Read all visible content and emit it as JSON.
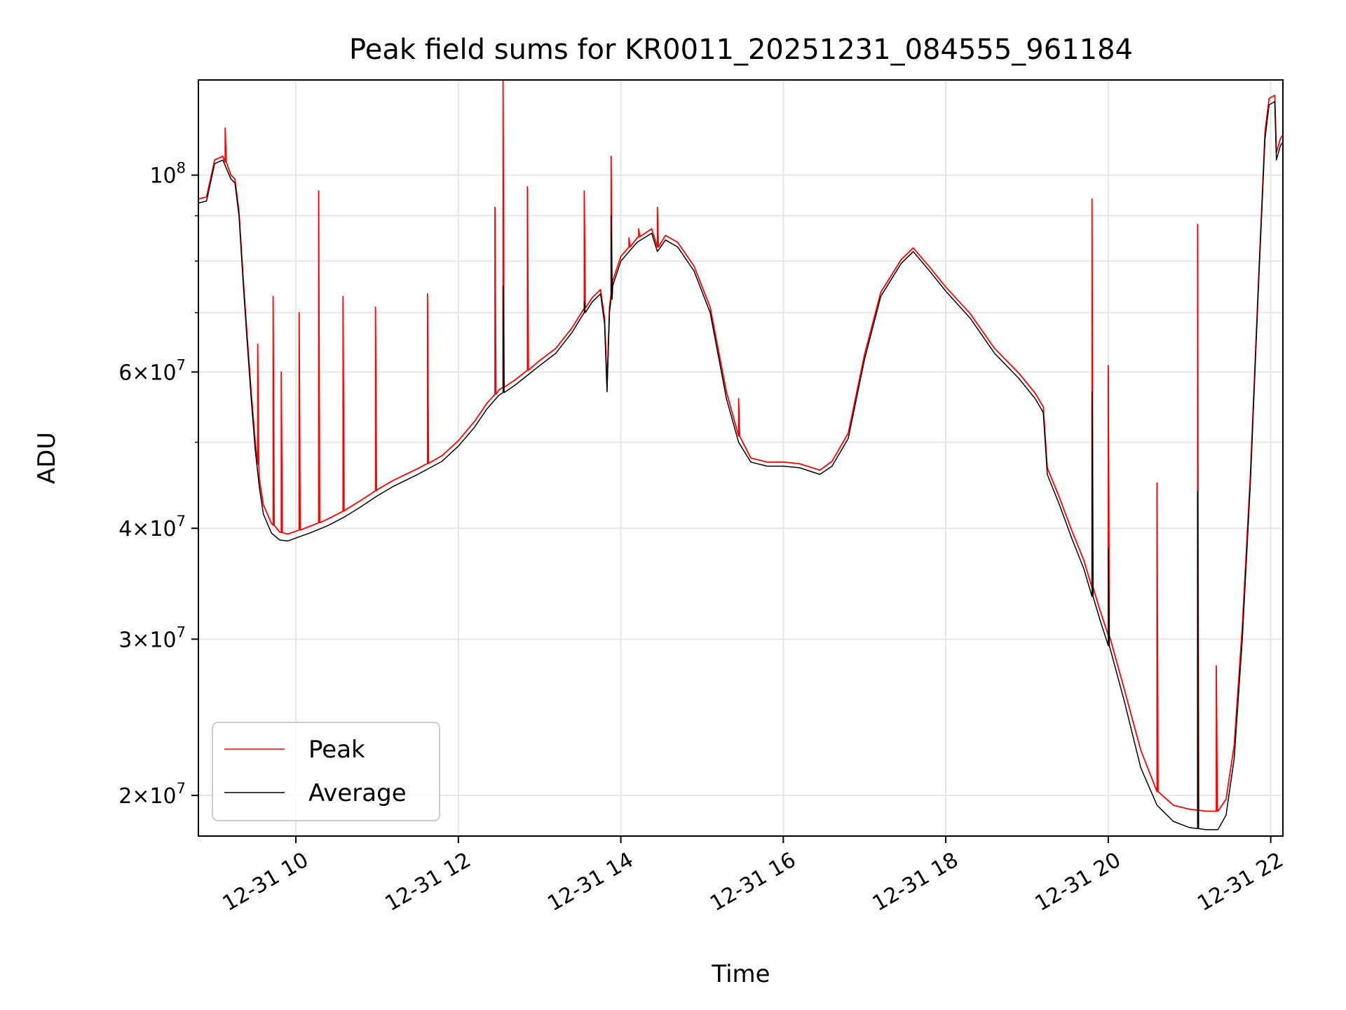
{
  "chart_data": {
    "type": "line",
    "title": "Peak field sums for KR0011_20251231_084555_961184",
    "xlabel": "Time",
    "ylabel": "ADU",
    "yscale": "log",
    "xlim": [
      8.8,
      22.15
    ],
    "ylim": [
      18000000,
      128000000
    ],
    "grid": true,
    "x_ticks": [
      {
        "value": 10,
        "label": "12-31 10"
      },
      {
        "value": 12,
        "label": "12-31 12"
      },
      {
        "value": 14,
        "label": "12-31 14"
      },
      {
        "value": 16,
        "label": "12-31 16"
      },
      {
        "value": 18,
        "label": "12-31 18"
      },
      {
        "value": 20,
        "label": "12-31 20"
      },
      {
        "value": 22,
        "label": "12-31 22"
      }
    ],
    "y_ticks": [
      {
        "value": 100000000,
        "mantissa": "",
        "base": "10",
        "exp": "8"
      },
      {
        "value": 60000000,
        "mantissa": "6",
        "base": "10",
        "exp": "7"
      },
      {
        "value": 40000000,
        "mantissa": "4",
        "base": "10",
        "exp": "7"
      },
      {
        "value": 30000000,
        "mantissa": "3",
        "base": "10",
        "exp": "7"
      },
      {
        "value": 20000000,
        "mantissa": "2",
        "base": "10",
        "exp": "7"
      }
    ],
    "y_minor_ticks": [
      50000000,
      70000000,
      80000000,
      90000000
    ],
    "legend": {
      "position": "lower-left",
      "entries": [
        "Peak",
        "Average"
      ]
    },
    "series": [
      {
        "name": "Average",
        "color": "#000000",
        "points": [
          [
            8.8,
            93
          ],
          [
            8.9,
            93.5
          ],
          [
            9.0,
            103
          ],
          [
            9.1,
            104
          ],
          [
            9.2,
            99
          ],
          [
            9.25,
            98
          ],
          [
            9.3,
            90
          ],
          [
            9.35,
            76
          ],
          [
            9.4,
            65
          ],
          [
            9.45,
            56
          ],
          [
            9.5,
            49
          ],
          [
            9.55,
            44.5
          ],
          [
            9.6,
            41.5
          ],
          [
            9.7,
            39.5
          ],
          [
            9.8,
            38.8
          ],
          [
            9.9,
            38.7
          ],
          [
            10.0,
            39.0
          ],
          [
            10.2,
            39.6
          ],
          [
            10.4,
            40.3
          ],
          [
            10.6,
            41.2
          ],
          [
            10.8,
            42.3
          ],
          [
            11.0,
            43.5
          ],
          [
            11.2,
            44.6
          ],
          [
            11.5,
            46.0
          ],
          [
            11.8,
            47.6
          ],
          [
            12.0,
            49.5
          ],
          [
            12.2,
            52.0
          ],
          [
            12.35,
            54.5
          ],
          [
            12.5,
            56.5
          ],
          [
            12.7,
            58.0
          ],
          [
            13.0,
            61.0
          ],
          [
            13.2,
            63.0
          ],
          [
            13.4,
            66.5
          ],
          [
            13.55,
            70.0
          ],
          [
            13.65,
            72.0
          ],
          [
            13.75,
            73.5
          ],
          [
            13.8,
            68.0
          ],
          [
            13.83,
            57.0
          ],
          [
            13.86,
            70.0
          ],
          [
            13.9,
            75.0
          ],
          [
            14.0,
            80.0
          ],
          [
            14.2,
            84.0
          ],
          [
            14.38,
            86.0
          ],
          [
            14.45,
            82.0
          ],
          [
            14.55,
            84.5
          ],
          [
            14.7,
            83.0
          ],
          [
            14.9,
            78.0
          ],
          [
            15.1,
            70.0
          ],
          [
            15.3,
            56.0
          ],
          [
            15.45,
            50.0
          ],
          [
            15.6,
            47.5
          ],
          [
            15.8,
            47.0
          ],
          [
            16.0,
            47.0
          ],
          [
            16.2,
            46.8
          ],
          [
            16.45,
            46.0
          ],
          [
            16.6,
            47.0
          ],
          [
            16.8,
            50.5
          ],
          [
            17.0,
            62.0
          ],
          [
            17.2,
            73.0
          ],
          [
            17.45,
            79.5
          ],
          [
            17.6,
            82.0
          ],
          [
            17.8,
            78.0
          ],
          [
            18.0,
            74.0
          ],
          [
            18.3,
            69.0
          ],
          [
            18.6,
            63.0
          ],
          [
            18.9,
            59.0
          ],
          [
            19.1,
            56.0
          ],
          [
            19.2,
            54.0
          ],
          [
            19.25,
            46.0
          ],
          [
            19.4,
            42.5
          ],
          [
            19.55,
            39.0
          ],
          [
            19.7,
            36.0
          ],
          [
            19.8,
            33.5
          ],
          [
            19.9,
            31.5
          ],
          [
            20.0,
            29.5
          ],
          [
            20.2,
            25.5
          ],
          [
            20.4,
            21.5
          ],
          [
            20.6,
            19.5
          ],
          [
            20.8,
            18.7
          ],
          [
            21.0,
            18.4
          ],
          [
            21.2,
            18.3
          ],
          [
            21.35,
            18.3
          ],
          [
            21.45,
            19.0
          ],
          [
            21.55,
            22.0
          ],
          [
            21.65,
            30.0
          ],
          [
            21.75,
            45.0
          ],
          [
            21.85,
            75.0
          ],
          [
            21.93,
            110.0
          ],
          [
            21.98,
            120.0
          ],
          [
            22.05,
            121.0
          ],
          [
            22.07,
            104.0
          ],
          [
            22.12,
            108.0
          ],
          [
            22.15,
            109.0
          ]
        ],
        "spikes": [
          [
            12.55,
            75
          ],
          [
            13.55,
            72
          ],
          [
            13.88,
            90
          ],
          [
            19.8,
            57
          ],
          [
            20.0,
            38
          ],
          [
            21.1,
            44
          ]
        ]
      },
      {
        "name": "Peak",
        "color": "#ff0000",
        "points": [
          [
            8.8,
            94
          ],
          [
            8.9,
            94.5
          ],
          [
            9.0,
            104
          ],
          [
            9.1,
            105
          ],
          [
            9.2,
            100
          ],
          [
            9.25,
            99
          ],
          [
            9.3,
            91
          ],
          [
            9.35,
            77
          ],
          [
            9.4,
            66
          ],
          [
            9.45,
            57
          ],
          [
            9.5,
            50
          ],
          [
            9.55,
            45.5
          ],
          [
            9.6,
            42.5
          ],
          [
            9.7,
            40.5
          ],
          [
            9.8,
            39.6
          ],
          [
            9.9,
            39.4
          ],
          [
            10.0,
            39.7
          ],
          [
            10.2,
            40.3
          ],
          [
            10.4,
            41.0
          ],
          [
            10.6,
            41.9
          ],
          [
            10.8,
            43.0
          ],
          [
            11.0,
            44.2
          ],
          [
            11.2,
            45.3
          ],
          [
            11.5,
            46.7
          ],
          [
            11.8,
            48.3
          ],
          [
            12.0,
            50.2
          ],
          [
            12.2,
            52.8
          ],
          [
            12.35,
            55.3
          ],
          [
            12.5,
            57.3
          ],
          [
            12.7,
            58.8
          ],
          [
            13.0,
            61.8
          ],
          [
            13.2,
            63.8
          ],
          [
            13.4,
            67.3
          ],
          [
            13.55,
            70.8
          ],
          [
            13.65,
            72.8
          ],
          [
            13.75,
            74.3
          ],
          [
            13.8,
            69.0
          ],
          [
            13.83,
            58.0
          ],
          [
            13.86,
            71.0
          ],
          [
            13.9,
            76.0
          ],
          [
            14.0,
            81.0
          ],
          [
            14.2,
            85.0
          ],
          [
            14.38,
            87.0
          ],
          [
            14.45,
            83.0
          ],
          [
            14.55,
            85.5
          ],
          [
            14.7,
            84.0
          ],
          [
            14.9,
            79.0
          ],
          [
            15.1,
            71.0
          ],
          [
            15.3,
            57.0
          ],
          [
            15.45,
            50.8
          ],
          [
            15.6,
            48.0
          ],
          [
            15.8,
            47.5
          ],
          [
            16.0,
            47.5
          ],
          [
            16.2,
            47.3
          ],
          [
            16.45,
            46.5
          ],
          [
            16.6,
            47.6
          ],
          [
            16.8,
            51.2
          ],
          [
            17.0,
            62.8
          ],
          [
            17.2,
            73.8
          ],
          [
            17.45,
            80.3
          ],
          [
            17.6,
            82.8
          ],
          [
            17.8,
            78.8
          ],
          [
            18.0,
            74.8
          ],
          [
            18.3,
            69.8
          ],
          [
            18.6,
            63.8
          ],
          [
            18.9,
            59.8
          ],
          [
            19.1,
            56.8
          ],
          [
            19.2,
            54.8
          ],
          [
            19.25,
            46.8
          ],
          [
            19.4,
            43.3
          ],
          [
            19.55,
            39.8
          ],
          [
            19.7,
            36.8
          ],
          [
            19.8,
            34.3
          ],
          [
            19.9,
            32.3
          ],
          [
            20.0,
            30.3
          ],
          [
            20.2,
            26.3
          ],
          [
            20.4,
            22.5
          ],
          [
            20.6,
            20.2
          ],
          [
            20.8,
            19.5
          ],
          [
            21.0,
            19.3
          ],
          [
            21.2,
            19.2
          ],
          [
            21.35,
            19.2
          ],
          [
            21.45,
            19.8
          ],
          [
            21.55,
            22.8
          ],
          [
            21.65,
            31.0
          ],
          [
            21.75,
            46.0
          ],
          [
            21.85,
            76.0
          ],
          [
            21.93,
            112.0
          ],
          [
            21.98,
            122.0
          ],
          [
            22.05,
            123.0
          ],
          [
            22.07,
            106.0
          ],
          [
            22.12,
            110.0
          ],
          [
            22.15,
            111.0
          ]
        ],
        "spikes": [
          [
            9.13,
            113
          ],
          [
            9.53,
            64.5
          ],
          [
            9.72,
            73
          ],
          [
            9.82,
            60
          ],
          [
            10.04,
            70
          ],
          [
            10.28,
            96
          ],
          [
            10.58,
            73
          ],
          [
            10.98,
            71
          ],
          [
            11.62,
            73.5
          ],
          [
            12.45,
            92
          ],
          [
            12.55,
            128
          ],
          [
            12.85,
            97
          ],
          [
            13.55,
            96
          ],
          [
            13.88,
            105
          ],
          [
            14.1,
            85
          ],
          [
            14.22,
            87
          ],
          [
            14.45,
            92
          ],
          [
            15.45,
            56
          ],
          [
            19.8,
            94
          ],
          [
            20.0,
            61
          ],
          [
            20.6,
            45
          ],
          [
            21.1,
            88
          ],
          [
            21.33,
            28
          ]
        ]
      }
    ]
  }
}
